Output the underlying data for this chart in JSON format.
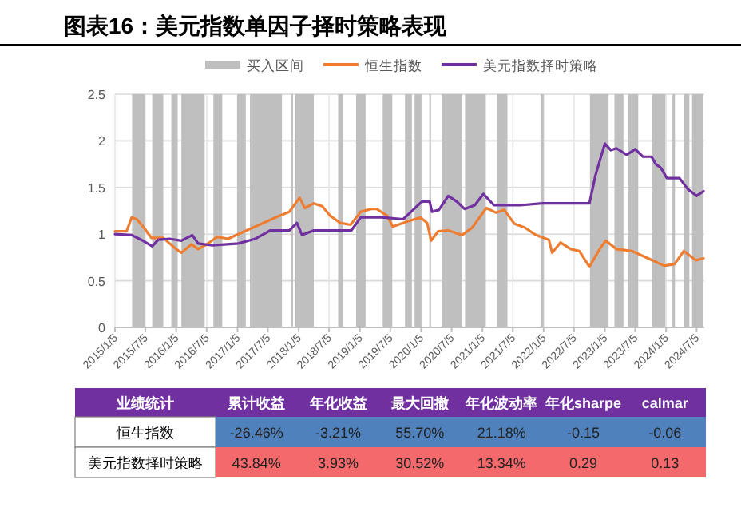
{
  "chart_data": [
    {
      "type": "line",
      "title": "图表16：美元指数单因子择时策略表现",
      "legend": "top",
      "grid": true,
      "xlim": [
        "2015-01-05",
        "2024-08-20"
      ],
      "ylim": [
        0,
        2.5
      ],
      "yticks": [
        0,
        0.5,
        1,
        1.5,
        2,
        2.5
      ],
      "xticks": [
        {
          "value": "2015-01-05",
          "label": "2015/1/5"
        },
        {
          "value": "2015-07-05",
          "label": "2015/7/5"
        },
        {
          "value": "2016-01-05",
          "label": "2016/1/5"
        },
        {
          "value": "2016-07-05",
          "label": "2016/7/5"
        },
        {
          "value": "2017-01-05",
          "label": "2017/1/5"
        },
        {
          "value": "2017-07-05",
          "label": "2017/7/5"
        },
        {
          "value": "2018-01-05",
          "label": "2018/1/5"
        },
        {
          "value": "2018-07-05",
          "label": "2018/7/5"
        },
        {
          "value": "2019-01-05",
          "label": "2019/1/5"
        },
        {
          "value": "2019-07-05",
          "label": "2019/7/5"
        },
        {
          "value": "2020-01-05",
          "label": "2020/1/5"
        },
        {
          "value": "2020-07-05",
          "label": "2020/7/5"
        },
        {
          "value": "2021-01-05",
          "label": "2021/1/5"
        },
        {
          "value": "2021-07-05",
          "label": "2021/7/5"
        },
        {
          "value": "2022-01-05",
          "label": "2022/1/5"
        },
        {
          "value": "2022-07-05",
          "label": "2022/7/5"
        },
        {
          "value": "2023-01-05",
          "label": "2023/1/5"
        },
        {
          "value": "2023-07-05",
          "label": "2023/7/5"
        },
        {
          "value": "2024-01-05",
          "label": "2024/1/5"
        },
        {
          "value": "2024-07-05",
          "label": "2024/7/5"
        }
      ],
      "bands": [
        {
          "axis": "x",
          "from": "2015-04-17",
          "to": "2015-07-02",
          "label": "买入区间",
          "color": "#bfbfbf"
        },
        {
          "axis": "x",
          "from": "2015-08-15",
          "to": "2015-10-20",
          "color": "#bfbfbf"
        },
        {
          "axis": "x",
          "from": "2015-12-07",
          "to": "2016-01-14",
          "color": "#bfbfbf"
        },
        {
          "axis": "x",
          "from": "2016-02-05",
          "to": "2016-06-23",
          "color": "#bfbfbf"
        },
        {
          "axis": "x",
          "from": "2016-08-14",
          "to": "2016-10-06",
          "color": "#bfbfbf"
        },
        {
          "axis": "x",
          "from": "2017-01-03",
          "to": "2017-02-23",
          "color": "#bfbfbf"
        },
        {
          "axis": "x",
          "from": "2017-03-20",
          "to": "2017-09-27",
          "color": "#bfbfbf"
        },
        {
          "axis": "x",
          "from": "2017-11-23",
          "to": "2017-12-02",
          "color": "#bfbfbf"
        },
        {
          "axis": "x",
          "from": "2017-12-15",
          "to": "2018-04-05",
          "color": "#bfbfbf"
        },
        {
          "axis": "x",
          "from": "2018-08-28",
          "to": "2018-09-26",
          "color": "#bfbfbf"
        },
        {
          "axis": "x",
          "from": "2018-12-13",
          "to": "2019-02-08",
          "color": "#bfbfbf"
        },
        {
          "axis": "x",
          "from": "2019-05-21",
          "to": "2019-07-17",
          "color": "#bfbfbf"
        },
        {
          "axis": "x",
          "from": "2019-10-01",
          "to": "2019-11-11",
          "color": "#bfbfbf"
        },
        {
          "axis": "x",
          "from": "2019-11-27",
          "to": "2020-01-07",
          "color": "#bfbfbf"
        },
        {
          "axis": "x",
          "from": "2020-02-23",
          "to": "2020-03-04",
          "color": "#bfbfbf"
        },
        {
          "axis": "x",
          "from": "2020-05-07",
          "to": "2020-09-07",
          "color": "#bfbfbf"
        },
        {
          "axis": "x",
          "from": "2020-09-23",
          "to": "2021-01-25",
          "color": "#bfbfbf"
        },
        {
          "axis": "x",
          "from": "2021-04-02",
          "to": "2021-06-03",
          "color": "#bfbfbf"
        },
        {
          "axis": "x",
          "from": "2021-12-17",
          "to": "2022-01-05",
          "color": "#bfbfbf"
        },
        {
          "axis": "x",
          "from": "2022-10-08",
          "to": "2023-01-27",
          "color": "#bfbfbf"
        },
        {
          "axis": "x",
          "from": "2023-03-03",
          "to": "2023-04-26",
          "color": "#bfbfbf"
        },
        {
          "axis": "x",
          "from": "2023-05-24",
          "to": "2023-07-23",
          "color": "#bfbfbf"
        },
        {
          "axis": "x",
          "from": "2023-10-14",
          "to": "2024-01-01",
          "color": "#bfbfbf"
        },
        {
          "axis": "x",
          "from": "2024-02-12",
          "to": "2024-02-27",
          "color": "#bfbfbf"
        },
        {
          "axis": "x",
          "from": "2024-04-21",
          "to": "2024-05-23",
          "color": "#bfbfbf"
        },
        {
          "axis": "x",
          "from": "2024-06-08",
          "to": "2024-08-13",
          "color": "#bfbfbf"
        }
      ],
      "series": [
        {
          "name": "恒生指数",
          "color": "#ed7d31",
          "x": [
            "2015-01-05",
            "2015-03-15",
            "2015-04-15",
            "2015-05-15",
            "2015-07-01",
            "2015-08-10",
            "2015-10-20",
            "2016-01-05",
            "2016-02-05",
            "2016-04-05",
            "2016-05-15",
            "2016-07-05",
            "2016-09-05",
            "2016-11-10",
            "2017-02-15",
            "2017-05-15",
            "2017-08-20",
            "2017-11-10",
            "2018-01-10",
            "2018-02-10",
            "2018-04-05",
            "2018-05-25",
            "2018-07-10",
            "2018-09-10",
            "2018-11-10",
            "2019-01-10",
            "2019-03-15",
            "2019-04-15",
            "2019-06-15",
            "2019-07-20",
            "2019-09-20",
            "2020-01-01",
            "2020-02-10",
            "2020-03-05",
            "2020-04-15",
            "2020-06-15",
            "2020-09-05",
            "2020-11-05",
            "2021-01-28",
            "2021-03-28",
            "2021-05-15",
            "2021-07-15",
            "2021-09-15",
            "2021-11-20",
            "2022-02-05",
            "2022-02-25",
            "2022-04-15",
            "2022-06-15",
            "2022-08-05",
            "2022-10-05",
            "2022-12-05",
            "2023-01-10",
            "2023-03-15",
            "2023-06-15",
            "2023-09-20",
            "2023-12-25",
            "2024-02-25",
            "2024-04-20",
            "2024-07-01",
            "2024-08-15"
          ],
          "values": [
            1.03,
            1.03,
            1.18,
            1.16,
            1.06,
            0.96,
            0.96,
            0.84,
            0.8,
            0.89,
            0.84,
            0.89,
            0.97,
            0.95,
            1.03,
            1.1,
            1.18,
            1.24,
            1.39,
            1.28,
            1.33,
            1.3,
            1.2,
            1.12,
            1.1,
            1.24,
            1.27,
            1.27,
            1.2,
            1.08,
            1.12,
            1.18,
            1.12,
            0.93,
            1.03,
            1.04,
            0.99,
            1.07,
            1.28,
            1.23,
            1.26,
            1.11,
            1.07,
            0.99,
            0.94,
            0.8,
            0.91,
            0.84,
            0.82,
            0.65,
            0.84,
            0.93,
            0.84,
            0.82,
            0.74,
            0.66,
            0.68,
            0.82,
            0.72,
            0.74
          ]
        },
        {
          "name": "美元指数择时策略",
          "color": "#7030a0",
          "x": [
            "2015-01-05",
            "2015-04-15",
            "2015-06-10",
            "2015-08-15",
            "2015-09-20",
            "2015-11-25",
            "2016-02-05",
            "2016-04-10",
            "2016-05-15",
            "2016-08-10",
            "2017-01-10",
            "2017-04-20",
            "2017-07-20",
            "2017-11-10",
            "2017-12-25",
            "2018-01-25",
            "2018-04-05",
            "2018-11-15",
            "2019-01-10",
            "2019-05-15",
            "2019-09-20",
            "2020-01-10",
            "2020-02-25",
            "2020-03-10",
            "2020-04-20",
            "2020-06-15",
            "2020-08-05",
            "2020-09-20",
            "2020-11-20",
            "2021-01-10",
            "2021-03-15",
            "2021-08-20",
            "2021-12-25",
            "2022-10-05",
            "2022-11-10",
            "2023-01-05",
            "2023-02-10",
            "2023-03-15",
            "2023-05-15",
            "2023-07-05",
            "2023-08-20",
            "2023-10-10",
            "2023-11-05",
            "2023-12-05",
            "2024-01-10",
            "2024-03-25",
            "2024-05-15",
            "2024-07-05",
            "2024-08-15"
          ],
          "values": [
            1.0,
            0.99,
            0.94,
            0.87,
            0.94,
            0.95,
            0.93,
            0.99,
            0.9,
            0.88,
            0.9,
            0.95,
            1.04,
            1.04,
            1.12,
            0.99,
            1.04,
            1.04,
            1.18,
            1.18,
            1.16,
            1.35,
            1.35,
            1.24,
            1.26,
            1.41,
            1.35,
            1.27,
            1.31,
            1.43,
            1.31,
            1.31,
            1.33,
            1.33,
            1.63,
            1.97,
            1.9,
            1.92,
            1.85,
            1.91,
            1.83,
            1.83,
            1.75,
            1.71,
            1.6,
            1.6,
            1.48,
            1.41,
            1.46
          ]
        }
      ]
    },
    {
      "type": "other",
      "title": "业绩统计",
      "color": "#7030a0",
      "categories": [
        "累计收益",
        "年化收益",
        "最大回撤",
        "年化波动率",
        "年化sharpe",
        "calmar"
      ],
      "series": [
        {
          "name": "恒生指数",
          "color": "#4f81bd",
          "values": [
            -26.46,
            -3.21,
            55.7,
            21.18,
            -0.15,
            -0.06
          ],
          "value_labels": [
            "-26.46%",
            "-3.21%",
            "55.70%",
            "21.18%",
            "-0.15",
            "-0.06"
          ]
        },
        {
          "name": "美元指数择时策略",
          "color": "#f4696b",
          "values": [
            43.84,
            3.93,
            30.52,
            13.34,
            0.29,
            0.13
          ],
          "value_labels": [
            "43.84%",
            "3.93%",
            "30.52%",
            "13.34%",
            "0.29",
            "0.13"
          ]
        }
      ]
    }
  ]
}
